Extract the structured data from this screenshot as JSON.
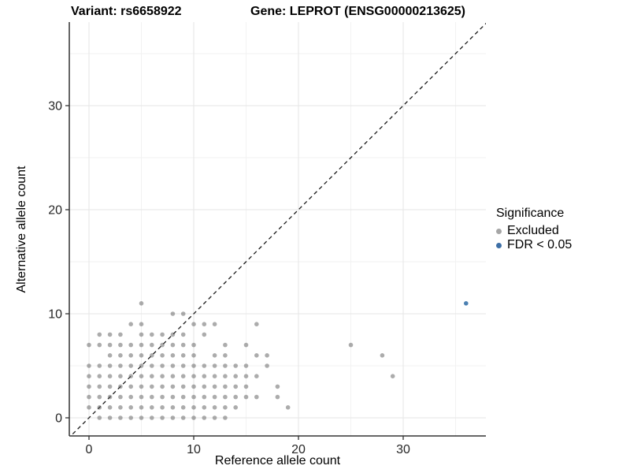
{
  "titles": {
    "variant": "Variant: rs6658922",
    "gene": "Gene: LEPROT (ENSG00000213625)"
  },
  "axes": {
    "x": {
      "label": "Reference allele count",
      "ticks": [
        0,
        10,
        20,
        30
      ],
      "minor_ticks": [
        5,
        15,
        25,
        35
      ]
    },
    "y": {
      "label": "Alternative allele count",
      "ticks": [
        0,
        10,
        20,
        30
      ],
      "minor_ticks": [
        5,
        15,
        25,
        35
      ]
    }
  },
  "legend": {
    "title": "Significance",
    "items": [
      {
        "label": "Excluded",
        "color": "#a6a6a6"
      },
      {
        "label": "FDR < 0.05",
        "color": "#3d6fa6"
      }
    ]
  },
  "chart_data": {
    "type": "scatter",
    "title": "Variant: rs6658922 | Gene: LEPROT (ENSG00000213625)",
    "xlabel": "Reference allele count",
    "ylabel": "Alternative allele count",
    "xlim": [
      -1.9,
      37.9
    ],
    "ylim": [
      -1.8,
      38.0
    ],
    "grid": "on",
    "legend_position": "right",
    "identity_line": {
      "show": true,
      "style": "dashed",
      "color": "#1a1a1a"
    },
    "series": [
      {
        "name": "Excluded",
        "color": "rgba(90,90,90,0.5)",
        "points": [
          [
            1,
            0
          ],
          [
            2,
            0
          ],
          [
            3,
            0
          ],
          [
            4,
            0
          ],
          [
            5,
            0
          ],
          [
            6,
            0
          ],
          [
            7,
            0
          ],
          [
            8,
            0
          ],
          [
            9,
            0
          ],
          [
            10,
            0
          ],
          [
            11,
            0
          ],
          [
            12,
            0
          ],
          [
            13,
            0
          ],
          [
            0,
            1
          ],
          [
            1,
            1
          ],
          [
            2,
            1
          ],
          [
            3,
            1
          ],
          [
            4,
            1
          ],
          [
            5,
            1
          ],
          [
            6,
            1
          ],
          [
            7,
            1
          ],
          [
            8,
            1
          ],
          [
            9,
            1
          ],
          [
            10,
            1
          ],
          [
            11,
            1
          ],
          [
            12,
            1
          ],
          [
            13,
            1
          ],
          [
            14,
            1
          ],
          [
            19,
            1
          ],
          [
            0,
            2
          ],
          [
            1,
            2
          ],
          [
            2,
            2
          ],
          [
            3,
            2
          ],
          [
            4,
            2
          ],
          [
            5,
            2
          ],
          [
            6,
            2
          ],
          [
            7,
            2
          ],
          [
            8,
            2
          ],
          [
            9,
            2
          ],
          [
            10,
            2
          ],
          [
            11,
            2
          ],
          [
            12,
            2
          ],
          [
            13,
            2
          ],
          [
            14,
            2
          ],
          [
            15,
            2
          ],
          [
            16,
            2
          ],
          [
            18,
            2
          ],
          [
            0,
            3
          ],
          [
            1,
            3
          ],
          [
            2,
            3
          ],
          [
            3,
            3
          ],
          [
            4,
            3
          ],
          [
            5,
            3
          ],
          [
            6,
            3
          ],
          [
            7,
            3
          ],
          [
            8,
            3
          ],
          [
            9,
            3
          ],
          [
            10,
            3
          ],
          [
            11,
            3
          ],
          [
            12,
            3
          ],
          [
            13,
            3
          ],
          [
            14,
            3
          ],
          [
            15,
            3
          ],
          [
            18,
            3
          ],
          [
            0,
            4
          ],
          [
            1,
            4
          ],
          [
            2,
            4
          ],
          [
            3,
            4
          ],
          [
            4,
            4
          ],
          [
            5,
            4
          ],
          [
            6,
            4
          ],
          [
            7,
            4
          ],
          [
            8,
            4
          ],
          [
            9,
            4
          ],
          [
            10,
            4
          ],
          [
            11,
            4
          ],
          [
            12,
            4
          ],
          [
            13,
            4
          ],
          [
            14,
            4
          ],
          [
            15,
            4
          ],
          [
            16,
            4
          ],
          [
            29,
            4
          ],
          [
            0,
            5
          ],
          [
            1,
            5
          ],
          [
            2,
            5
          ],
          [
            3,
            5
          ],
          [
            4,
            5
          ],
          [
            5,
            5
          ],
          [
            6,
            5
          ],
          [
            7,
            5
          ],
          [
            8,
            5
          ],
          [
            9,
            5
          ],
          [
            10,
            5
          ],
          [
            11,
            5
          ],
          [
            12,
            5
          ],
          [
            13,
            5
          ],
          [
            14,
            5
          ],
          [
            15,
            5
          ],
          [
            17,
            5
          ],
          [
            2,
            6
          ],
          [
            3,
            6
          ],
          [
            4,
            6
          ],
          [
            5,
            6
          ],
          [
            6,
            6
          ],
          [
            7,
            6
          ],
          [
            8,
            6
          ],
          [
            9,
            6
          ],
          [
            10,
            6
          ],
          [
            12,
            6
          ],
          [
            13,
            6
          ],
          [
            16,
            6
          ],
          [
            17,
            6
          ],
          [
            28,
            6
          ],
          [
            0,
            7
          ],
          [
            1,
            7
          ],
          [
            2,
            7
          ],
          [
            3,
            7
          ],
          [
            4,
            7
          ],
          [
            5,
            7
          ],
          [
            6,
            7
          ],
          [
            7,
            7
          ],
          [
            8,
            7
          ],
          [
            9,
            7
          ],
          [
            10,
            7
          ],
          [
            13,
            7
          ],
          [
            15,
            7
          ],
          [
            25,
            7
          ],
          [
            1,
            8
          ],
          [
            2,
            8
          ],
          [
            3,
            8
          ],
          [
            5,
            8
          ],
          [
            6,
            8
          ],
          [
            7,
            8
          ],
          [
            8,
            8
          ],
          [
            9,
            8
          ],
          [
            11,
            8
          ],
          [
            4,
            9
          ],
          [
            5,
            9
          ],
          [
            10,
            9
          ],
          [
            11,
            9
          ],
          [
            12,
            9
          ],
          [
            16,
            9
          ],
          [
            8,
            10
          ],
          [
            9,
            10
          ],
          [
            5,
            11
          ]
        ]
      },
      {
        "name": "FDR < 0.05",
        "color": "#4c80b2",
        "points": [
          [
            36,
            11
          ]
        ]
      }
    ]
  }
}
